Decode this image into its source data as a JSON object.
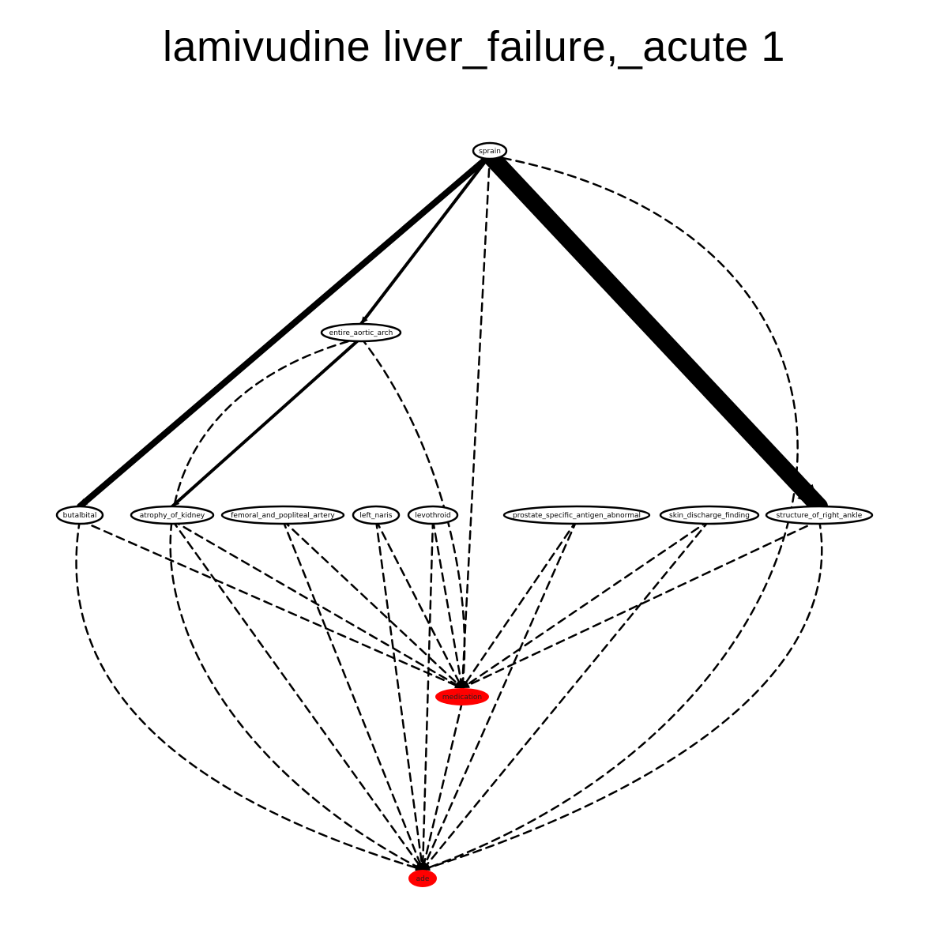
{
  "title": "lamivudine liver_failure,_acute 1",
  "colors": {
    "highlight": "#ff0000",
    "stroke": "#000000",
    "background": "#ffffff"
  },
  "nodes": [
    {
      "id": "sprain",
      "label": "sprain",
      "highlight": false
    },
    {
      "id": "entire_aortic_arch",
      "label": "entire_aortic_arch",
      "highlight": false
    },
    {
      "id": "butalbital",
      "label": "butalbital",
      "highlight": false
    },
    {
      "id": "atrophy_of_kidney",
      "label": "atrophy_of_kidney",
      "highlight": false
    },
    {
      "id": "femoral_and_popliteal_artery",
      "label": "femoral_and_popliteal_artery",
      "highlight": false
    },
    {
      "id": "left_naris",
      "label": "left_naris",
      "highlight": false
    },
    {
      "id": "levothroid",
      "label": "levothroid",
      "highlight": false
    },
    {
      "id": "prostate_specific_antigen_abnormal",
      "label": "prostate_specific_antigen_abnormal",
      "highlight": false
    },
    {
      "id": "skin_discharge_finding",
      "label": "skin_discharge_finding",
      "highlight": false
    },
    {
      "id": "structure_of_right_ankle",
      "label": "structure_of_right_ankle",
      "highlight": false
    },
    {
      "id": "medication",
      "label": "medication",
      "highlight": true
    },
    {
      "id": "ade",
      "label": "ade",
      "highlight": true
    }
  ],
  "edges": [
    {
      "from": "sprain",
      "to": "butalbital",
      "style": "solid",
      "weight": 8
    },
    {
      "from": "sprain",
      "to": "entire_aortic_arch",
      "style": "solid",
      "weight": 4
    },
    {
      "from": "sprain",
      "to": "structure_of_right_ankle",
      "style": "solid",
      "weight": 22
    },
    {
      "from": "sprain",
      "to": "medication",
      "style": "dashed",
      "weight": 2.5
    },
    {
      "from": "sprain",
      "to": "ade",
      "style": "dashed",
      "weight": 2.5
    },
    {
      "from": "entire_aortic_arch",
      "to": "atrophy_of_kidney",
      "style": "solid",
      "weight": 4
    },
    {
      "from": "entire_aortic_arch",
      "to": "medication",
      "style": "dashed",
      "weight": 2.5
    },
    {
      "from": "entire_aortic_arch",
      "to": "ade",
      "style": "dashed",
      "weight": 2.5
    },
    {
      "from": "butalbital",
      "to": "medication",
      "style": "dashed",
      "weight": 2.5
    },
    {
      "from": "butalbital",
      "to": "ade",
      "style": "dashed",
      "weight": 2.5
    },
    {
      "from": "atrophy_of_kidney",
      "to": "medication",
      "style": "dashed",
      "weight": 2.5
    },
    {
      "from": "atrophy_of_kidney",
      "to": "ade",
      "style": "dashed",
      "weight": 2.5
    },
    {
      "from": "femoral_and_popliteal_artery",
      "to": "medication",
      "style": "dashed",
      "weight": 2.5
    },
    {
      "from": "femoral_and_popliteal_artery",
      "to": "ade",
      "style": "dashed",
      "weight": 2.5
    },
    {
      "from": "left_naris",
      "to": "medication",
      "style": "dashed",
      "weight": 2.5
    },
    {
      "from": "left_naris",
      "to": "ade",
      "style": "dashed",
      "weight": 2.5
    },
    {
      "from": "levothroid",
      "to": "medication",
      "style": "dashed",
      "weight": 2.5
    },
    {
      "from": "levothroid",
      "to": "ade",
      "style": "dashed",
      "weight": 2.5
    },
    {
      "from": "prostate_specific_antigen_abnormal",
      "to": "medication",
      "style": "dashed",
      "weight": 2.5
    },
    {
      "from": "prostate_specific_antigen_abnormal",
      "to": "ade",
      "style": "dashed",
      "weight": 2.5
    },
    {
      "from": "skin_discharge_finding",
      "to": "medication",
      "style": "dashed",
      "weight": 2.5
    },
    {
      "from": "skin_discharge_finding",
      "to": "ade",
      "style": "dashed",
      "weight": 2.5
    },
    {
      "from": "structure_of_right_ankle",
      "to": "medication",
      "style": "dashed",
      "weight": 2.5
    },
    {
      "from": "structure_of_right_ankle",
      "to": "ade",
      "style": "dashed",
      "weight": 2.5
    },
    {
      "from": "medication",
      "to": "ade",
      "style": "dashed",
      "weight": 2.5
    }
  ]
}
